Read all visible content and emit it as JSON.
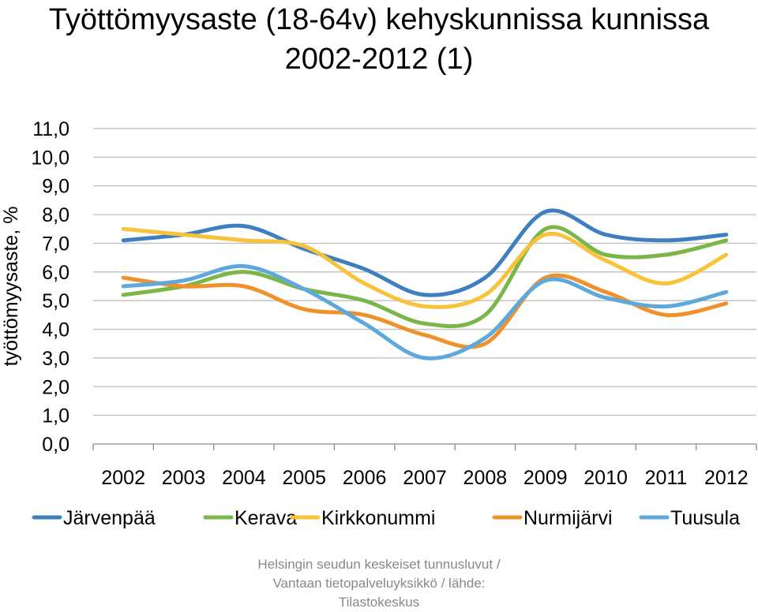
{
  "title_line1": "Työttömyysaste (18-64v) kehyskunnissa kunnissa",
  "title_line2": "2002-2012 (1)",
  "source_line1": "Helsingin seudun keskeiset tunnusluvut /",
  "source_line2": "Vantaan tietopalveluyksikkö / lähde:",
  "source_line3": "Tilastokeskus",
  "chart_data": {
    "type": "line",
    "title": "Työttömyysaste (18-64v) kehyskunnissa kunnissa 2002-2012 (1)",
    "xlabel": "",
    "ylabel": "työttömyysaste, %",
    "x": [
      "2002",
      "2003",
      "2004",
      "2005",
      "2006",
      "2007",
      "2008",
      "2009",
      "2010",
      "2011",
      "2012"
    ],
    "y_ticks": [
      "0,0",
      "1,0",
      "2,0",
      "3,0",
      "4,0",
      "5,0",
      "6,0",
      "7,0",
      "8,0",
      "9,0",
      "10,0",
      "11,0"
    ],
    "ylim": [
      0,
      11
    ],
    "grid": true,
    "smooth": true,
    "legend_position": "bottom",
    "series": [
      {
        "name": "Järvenpää",
        "color": "#3f7fbf",
        "values": [
          7.1,
          7.3,
          7.6,
          6.8,
          6.1,
          5.2,
          5.8,
          8.1,
          7.3,
          7.1,
          7.3
        ]
      },
      {
        "name": "Kerava",
        "color": "#7ab648",
        "values": [
          5.2,
          5.5,
          6.0,
          5.4,
          5.0,
          4.2,
          4.5,
          7.5,
          6.6,
          6.6,
          7.1
        ]
      },
      {
        "name": "Kirkkonummi",
        "color": "#f8c23a",
        "values": [
          7.5,
          7.3,
          7.1,
          6.9,
          5.6,
          4.8,
          5.2,
          7.3,
          6.4,
          5.6,
          6.6
        ]
      },
      {
        "name": "Nurmijärvi",
        "color": "#f0922b",
        "values": [
          5.8,
          5.5,
          5.5,
          4.7,
          4.5,
          3.8,
          3.5,
          5.8,
          5.3,
          4.5,
          4.9
        ]
      },
      {
        "name": "Tuusula",
        "color": "#5fa8dc",
        "values": [
          5.5,
          5.7,
          6.2,
          5.4,
          4.2,
          3.0,
          3.7,
          5.7,
          5.1,
          4.8,
          5.3
        ]
      }
    ]
  }
}
